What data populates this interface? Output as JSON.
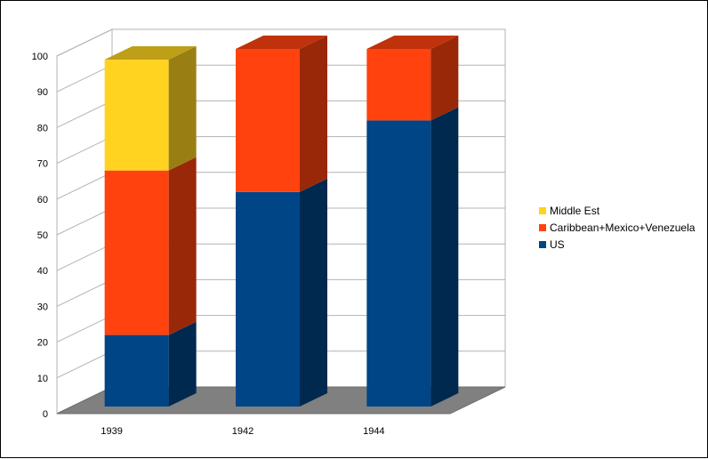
{
  "chart_data": {
    "type": "bar",
    "stacked": true,
    "three_d": true,
    "categories": [
      "1939",
      "1942",
      "1944"
    ],
    "series": [
      {
        "name": "US",
        "values": [
          20,
          60,
          80
        ],
        "color": "#004586"
      },
      {
        "name": "Caribbean+Mexico+Venezuela",
        "values": [
          46,
          40,
          20
        ],
        "color": "#ff420e"
      },
      {
        "name": "Middle Est",
        "values": [
          31,
          0,
          0
        ],
        "color": "#ffd320"
      }
    ],
    "y_ticks": [
      "0",
      "10",
      "20",
      "30",
      "40",
      "50",
      "60",
      "70",
      "80",
      "90",
      "100"
    ],
    "ylim": [
      0,
      100
    ],
    "grid": true,
    "legend_position": "right",
    "legend_order": [
      "Middle Est",
      "Caribbean+Mexico+Venezuela",
      "US"
    ],
    "title": "",
    "xlabel": "",
    "ylabel": ""
  }
}
